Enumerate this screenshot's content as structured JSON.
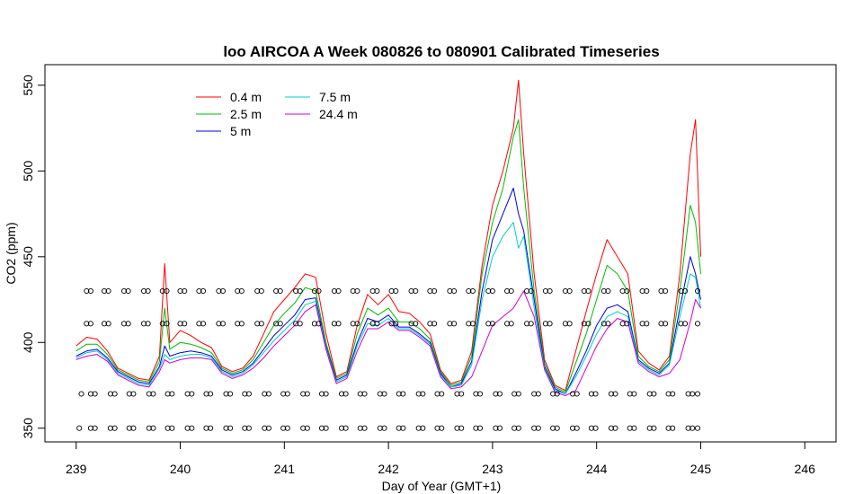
{
  "chart_data": {
    "type": "line",
    "title": "loo AIRCOA A  Week 080826 to 080901  Calibrated Timeseries",
    "xlabel": "Day of Year (GMT+1)",
    "ylabel": "CO2 (ppm)",
    "xlim": [
      238.7,
      246.3
    ],
    "ylim": [
      342,
      562
    ],
    "xticks": [
      239,
      240,
      241,
      242,
      243,
      244,
      245,
      246
    ],
    "yticks": [
      350,
      400,
      450,
      500,
      550
    ],
    "grid": false,
    "legend_position": "top-left",
    "series": [
      {
        "name": "0.4 m",
        "color": "#ff0000",
        "x": [
          239.0,
          239.1,
          239.2,
          239.3,
          239.4,
          239.5,
          239.6,
          239.7,
          239.8,
          239.85,
          239.9,
          240.0,
          240.1,
          240.2,
          240.3,
          240.4,
          240.5,
          240.6,
          240.7,
          240.8,
          240.9,
          241.0,
          241.1,
          241.2,
          241.3,
          241.4,
          241.5,
          241.6,
          241.7,
          241.8,
          241.9,
          242.0,
          242.1,
          242.2,
          242.3,
          242.4,
          242.5,
          242.6,
          242.7,
          242.8,
          242.9,
          243.0,
          243.1,
          243.2,
          243.25,
          243.3,
          243.4,
          243.5,
          243.6,
          243.7,
          243.8,
          243.9,
          244.0,
          244.1,
          244.2,
          244.3,
          244.4,
          244.5,
          244.6,
          244.7,
          244.8,
          244.9,
          244.95,
          245.0
        ],
        "y": [
          398,
          403,
          402,
          395,
          385,
          382,
          379,
          378,
          392,
          446,
          400,
          407,
          404,
          400,
          397,
          386,
          383,
          385,
          392,
          405,
          418,
          425,
          432,
          440,
          438,
          405,
          380,
          383,
          410,
          428,
          422,
          428,
          418,
          417,
          412,
          405,
          384,
          376,
          378,
          395,
          445,
          480,
          500,
          525,
          553,
          510,
          440,
          390,
          375,
          372,
          395,
          418,
          440,
          460,
          450,
          440,
          395,
          388,
          384,
          392,
          440,
          510,
          530,
          450
        ]
      },
      {
        "name": "2.5 m",
        "color": "#00bb00",
        "x": [
          239.0,
          239.1,
          239.2,
          239.3,
          239.4,
          239.5,
          239.6,
          239.7,
          239.8,
          239.85,
          239.9,
          240.0,
          240.1,
          240.2,
          240.3,
          240.4,
          240.5,
          240.6,
          240.7,
          240.8,
          240.9,
          241.0,
          241.1,
          241.2,
          241.3,
          241.4,
          241.5,
          241.6,
          241.7,
          241.8,
          241.9,
          242.0,
          242.1,
          242.2,
          242.3,
          242.4,
          242.5,
          242.6,
          242.7,
          242.8,
          242.9,
          243.0,
          243.1,
          243.2,
          243.25,
          243.3,
          243.4,
          243.5,
          243.6,
          243.7,
          243.8,
          243.9,
          244.0,
          244.1,
          244.2,
          244.3,
          244.4,
          244.5,
          244.6,
          244.7,
          244.8,
          244.9,
          244.95,
          245.0
        ],
        "y": [
          395,
          399,
          399,
          393,
          384,
          381,
          378,
          377,
          389,
          420,
          396,
          400,
          399,
          397,
          394,
          385,
          382,
          384,
          390,
          400,
          410,
          417,
          423,
          432,
          430,
          400,
          379,
          382,
          405,
          420,
          416,
          420,
          412,
          412,
          408,
          402,
          383,
          375,
          377,
          392,
          440,
          470,
          490,
          520,
          530,
          490,
          430,
          388,
          374,
          371,
          388,
          405,
          425,
          445,
          440,
          430,
          392,
          386,
          383,
          390,
          430,
          480,
          470,
          440
        ]
      },
      {
        "name": "5 m",
        "color": "#0000dd",
        "x": [
          239.0,
          239.1,
          239.2,
          239.3,
          239.4,
          239.5,
          239.6,
          239.7,
          239.8,
          239.85,
          239.9,
          240.0,
          240.1,
          240.2,
          240.3,
          240.4,
          240.5,
          240.6,
          240.7,
          240.8,
          240.9,
          241.0,
          241.1,
          241.2,
          241.3,
          241.4,
          241.5,
          241.6,
          241.7,
          241.8,
          241.9,
          242.0,
          242.1,
          242.2,
          242.3,
          242.4,
          242.5,
          242.6,
          242.7,
          242.8,
          242.9,
          243.0,
          243.1,
          243.2,
          243.25,
          243.3,
          243.4,
          243.5,
          243.6,
          243.7,
          243.8,
          243.9,
          244.0,
          244.1,
          244.2,
          244.3,
          244.4,
          244.5,
          244.6,
          244.7,
          244.8,
          244.9,
          244.95,
          245.0
        ],
        "y": [
          392,
          395,
          396,
          391,
          383,
          380,
          377,
          376,
          386,
          398,
          392,
          394,
          395,
          394,
          392,
          384,
          381,
          383,
          388,
          396,
          404,
          410,
          416,
          425,
          426,
          398,
          378,
          381,
          400,
          414,
          412,
          416,
          409,
          409,
          405,
          400,
          382,
          374,
          376,
          389,
          430,
          460,
          475,
          490,
          475,
          465,
          425,
          386,
          373,
          370,
          382,
          395,
          410,
          420,
          422,
          418,
          390,
          385,
          382,
          388,
          420,
          450,
          440,
          425
        ]
      },
      {
        "name": "7.5 m",
        "color": "#00cccc",
        "x": [
          239.0,
          239.1,
          239.2,
          239.3,
          239.4,
          239.5,
          239.6,
          239.7,
          239.8,
          239.85,
          239.9,
          240.0,
          240.1,
          240.2,
          240.3,
          240.4,
          240.5,
          240.6,
          240.7,
          240.8,
          240.9,
          241.0,
          241.1,
          241.2,
          241.3,
          241.4,
          241.5,
          241.6,
          241.7,
          241.8,
          241.9,
          242.0,
          242.1,
          242.2,
          242.3,
          242.4,
          242.5,
          242.6,
          242.7,
          242.8,
          242.9,
          243.0,
          243.1,
          243.2,
          243.25,
          243.3,
          243.4,
          243.5,
          243.6,
          243.7,
          243.8,
          243.9,
          244.0,
          244.1,
          244.2,
          244.3,
          244.4,
          244.5,
          244.6,
          244.7,
          244.8,
          244.9,
          244.95,
          245.0
        ],
        "y": [
          391,
          394,
          395,
          390,
          382,
          379,
          376,
          375,
          385,
          393,
          390,
          392,
          393,
          393,
          391,
          383,
          380,
          382,
          387,
          394,
          401,
          407,
          413,
          422,
          424,
          397,
          377,
          380,
          398,
          411,
          410,
          414,
          408,
          408,
          404,
          399,
          381,
          374,
          375,
          387,
          425,
          450,
          462,
          470,
          455,
          462,
          420,
          385,
          372,
          370,
          380,
          392,
          405,
          415,
          418,
          415,
          389,
          384,
          381,
          387,
          415,
          440,
          438,
          420
        ]
      },
      {
        "name": "24.4 m",
        "color": "#cc00cc",
        "x": [
          239.0,
          239.1,
          239.2,
          239.3,
          239.4,
          239.5,
          239.6,
          239.7,
          239.8,
          239.85,
          239.9,
          240.0,
          240.1,
          240.2,
          240.3,
          240.4,
          240.5,
          240.6,
          240.7,
          240.8,
          240.9,
          241.0,
          241.1,
          241.2,
          241.3,
          241.4,
          241.5,
          241.6,
          241.7,
          241.8,
          241.9,
          242.0,
          242.1,
          242.2,
          242.3,
          242.4,
          242.5,
          242.6,
          242.7,
          242.8,
          242.9,
          243.0,
          243.1,
          243.2,
          243.25,
          243.3,
          243.4,
          243.5,
          243.6,
          243.7,
          243.8,
          243.9,
          244.0,
          244.1,
          244.2,
          244.3,
          244.4,
          244.5,
          244.6,
          244.7,
          244.8,
          244.9,
          244.95,
          245.0
        ],
        "y": [
          390,
          392,
          393,
          389,
          381,
          378,
          375,
          374,
          383,
          390,
          388,
          390,
          391,
          391,
          390,
          382,
          379,
          381,
          385,
          391,
          398,
          404,
          410,
          418,
          422,
          396,
          376,
          379,
          395,
          408,
          408,
          412,
          407,
          407,
          403,
          398,
          380,
          373,
          374,
          380,
          395,
          410,
          415,
          420,
          425,
          430,
          415,
          384,
          371,
          369,
          372,
          385,
          398,
          408,
          414,
          412,
          388,
          383,
          380,
          382,
          390,
          412,
          425,
          420
        ]
      }
    ],
    "marker_series": {
      "symbol": "open-circle",
      "rows": [
        {
          "y": 430,
          "x": [
            239.1,
            239.14,
            239.27,
            239.31,
            239.46,
            239.5,
            239.65,
            239.69,
            239.83,
            239.87,
            240.0,
            240.04,
            240.18,
            240.22,
            240.37,
            240.41,
            240.55,
            240.59,
            240.74,
            240.78,
            240.92,
            240.96,
            241.11,
            241.15,
            241.29,
            241.33,
            241.48,
            241.52,
            241.66,
            241.7,
            241.85,
            241.89,
            242.03,
            242.07,
            242.22,
            242.26,
            242.4,
            242.44,
            242.59,
            242.63,
            242.77,
            242.81,
            242.96,
            243.0,
            243.14,
            243.18,
            243.33,
            243.37,
            243.51,
            243.55,
            243.7,
            243.74,
            243.88,
            243.92,
            244.07,
            244.11,
            244.25,
            244.29,
            244.44,
            244.48,
            244.62,
            244.66,
            244.81,
            244.85,
            244.97
          ]
        },
        {
          "y": 411,
          "x": [
            239.1,
            239.14,
            239.27,
            239.31,
            239.46,
            239.5,
            239.65,
            239.69,
            239.83,
            239.87,
            240.0,
            240.04,
            240.18,
            240.22,
            240.37,
            240.41,
            240.55,
            240.59,
            240.74,
            240.78,
            240.92,
            240.96,
            241.11,
            241.15,
            241.29,
            241.33,
            241.48,
            241.52,
            241.66,
            241.7,
            241.85,
            241.89,
            242.03,
            242.07,
            242.22,
            242.26,
            242.4,
            242.44,
            242.59,
            242.63,
            242.77,
            242.81,
            242.96,
            243.0,
            243.14,
            243.18,
            243.33,
            243.37,
            243.51,
            243.55,
            243.7,
            243.74,
            243.88,
            243.92,
            244.07,
            244.11,
            244.25,
            244.29,
            244.44,
            244.48,
            244.62,
            244.66,
            244.81,
            244.85,
            244.97
          ]
        },
        {
          "y": 370,
          "x": [
            239.05,
            239.14,
            239.18,
            239.33,
            239.37,
            239.51,
            239.55,
            239.7,
            239.74,
            239.88,
            239.92,
            240.07,
            240.11,
            240.25,
            240.29,
            240.44,
            240.48,
            240.62,
            240.66,
            240.81,
            240.85,
            240.99,
            241.03,
            241.18,
            241.22,
            241.36,
            241.4,
            241.55,
            241.59,
            241.73,
            241.77,
            241.92,
            241.96,
            242.1,
            242.14,
            242.29,
            242.33,
            242.47,
            242.51,
            242.66,
            242.7,
            242.84,
            242.88,
            243.03,
            243.07,
            243.21,
            243.25,
            243.4,
            243.44,
            243.58,
            243.62,
            243.77,
            243.81,
            243.95,
            243.99,
            244.14,
            244.18,
            244.32,
            244.36,
            244.51,
            244.55,
            244.69,
            244.73,
            244.88,
            244.92,
            244.97
          ]
        },
        {
          "y": 350,
          "x": [
            239.03,
            239.14,
            239.18,
            239.33,
            239.37,
            239.51,
            239.55,
            239.7,
            239.74,
            239.88,
            239.92,
            240.07,
            240.11,
            240.25,
            240.29,
            240.44,
            240.48,
            240.62,
            240.66,
            240.81,
            240.85,
            240.99,
            241.03,
            241.18,
            241.22,
            241.36,
            241.4,
            241.55,
            241.59,
            241.73,
            241.77,
            241.92,
            241.96,
            242.1,
            242.14,
            242.29,
            242.33,
            242.47,
            242.51,
            242.66,
            242.7,
            242.84,
            242.88,
            243.03,
            243.07,
            243.21,
            243.25,
            243.4,
            243.44,
            243.58,
            243.62,
            243.77,
            243.81,
            243.95,
            243.99,
            244.14,
            244.18,
            244.32,
            244.36,
            244.51,
            244.55,
            244.69,
            244.73,
            244.88,
            244.92,
            244.97
          ]
        }
      ]
    }
  }
}
